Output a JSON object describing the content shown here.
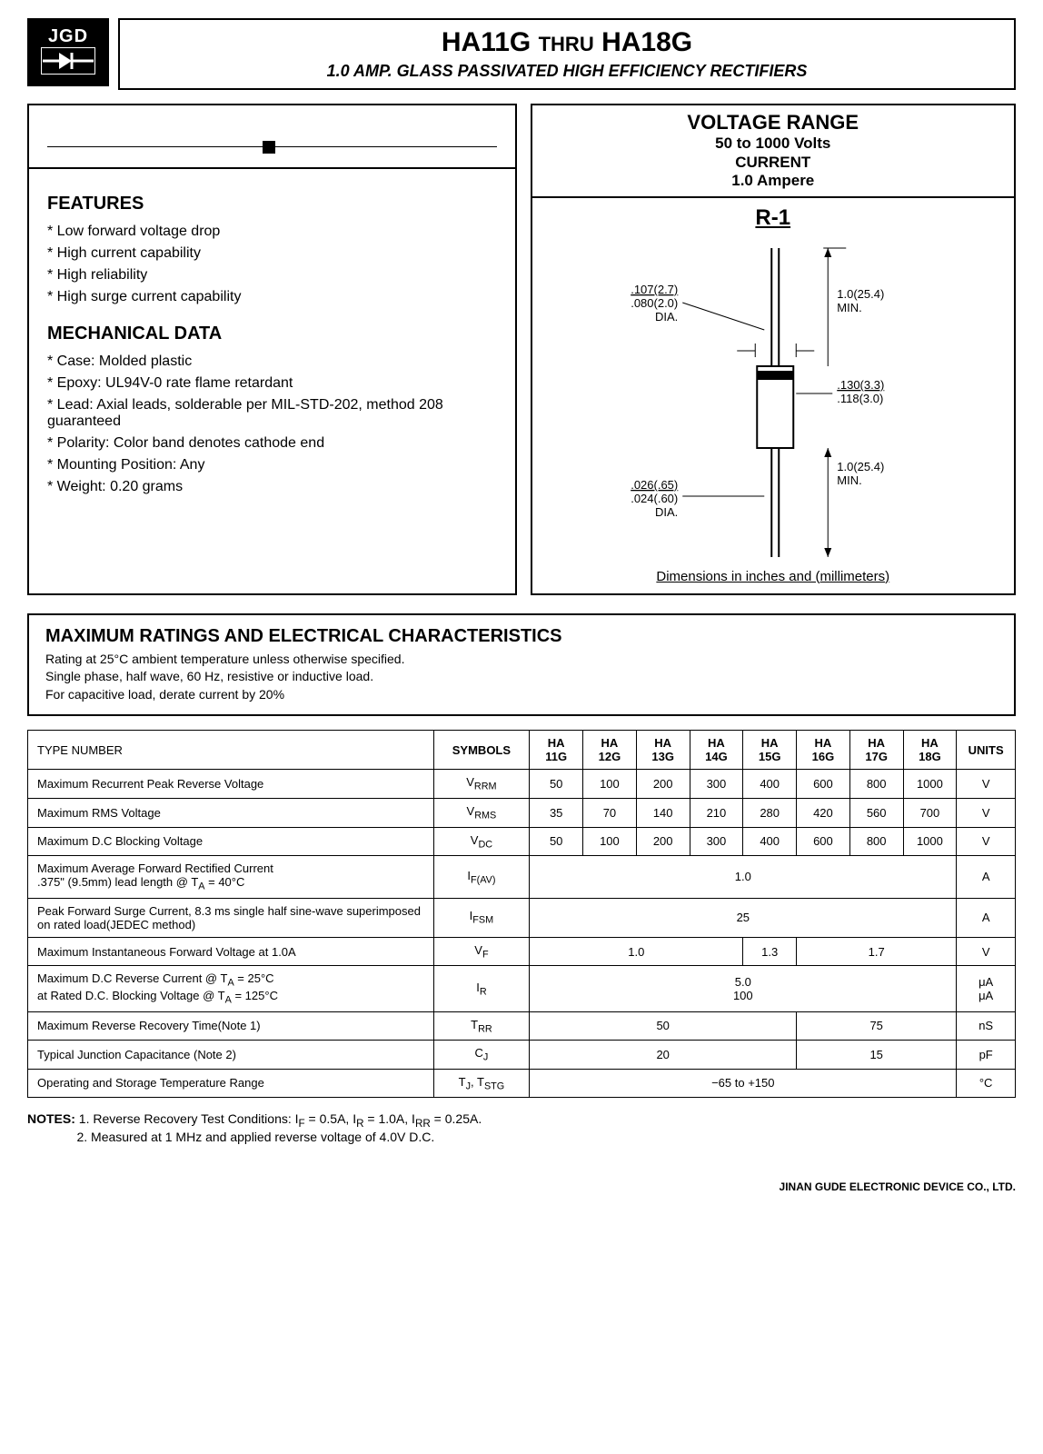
{
  "logo": {
    "text": "JGD"
  },
  "header": {
    "title_left": "HA11G",
    "title_mid": "THRU",
    "title_right": "HA18G",
    "subtitle": "1.0 AMP.  GLASS PASSIVATED HIGH EFFICIENCY RECTIFIERS"
  },
  "voltage_box": {
    "title": "VOLTAGE RANGE",
    "line1": "50 to 1000 Volts",
    "line2": "CURRENT",
    "line3": "1.0 Ampere"
  },
  "diagram": {
    "label": "R-1",
    "dim_lead_dia_top": ".107(2.7)",
    "dim_lead_dia_bot": ".080(2.0)",
    "dim_lead_dia_suffix": "DIA.",
    "dim_lead_len": "1.0(25.4)",
    "dim_lead_len_suffix": "MIN.",
    "dim_body_dia_top": ".130(3.3)",
    "dim_body_dia_bot": ".118(3.0)",
    "dim_lead2_dia_top": ".026(.65)",
    "dim_lead2_dia_bot": ".024(.60)",
    "dim_lead2_dia_suffix": "DIA.",
    "caption": "Dimensions in inches and (millimeters)"
  },
  "features": {
    "title": "FEATURES",
    "items": [
      "Low forward voltage drop",
      "High current capability",
      "High reliability",
      "High surge current capability"
    ]
  },
  "mechanical": {
    "title": "MECHANICAL DATA",
    "items": [
      "Case: Molded plastic",
      "Epoxy: UL94V-0 rate flame retardant",
      "Lead: Axial leads, solderable per MIL-STD-202, method 208 guaranteed",
      "Polarity: Color band denotes cathode end",
      "Mounting Position: Any",
      "Weight: 0.20 grams"
    ]
  },
  "ratings": {
    "title": "MAXIMUM RATINGS AND ELECTRICAL CHARACTERISTICS",
    "line1": "Rating at 25°C ambient temperature unless otherwise specified.",
    "line2": "Single phase, half wave, 60 Hz, resistive or inductive load.",
    "line3": "For capacitive load, derate current by 20%"
  },
  "table": {
    "headers": {
      "type": "TYPE NUMBER",
      "symbols": "SYMBOLS",
      "cols": [
        "HA 11G",
        "HA 12G",
        "HA 13G",
        "HA 14G",
        "HA 15G",
        "HA 16G",
        "HA 17G",
        "HA 18G"
      ],
      "units": "UNITS"
    },
    "rows": [
      {
        "label": "Maximum Recurrent Peak Reverse Voltage",
        "symbol": "V<sub>RRM</sub>",
        "vals": [
          "50",
          "100",
          "200",
          "300",
          "400",
          "600",
          "800",
          "1000"
        ],
        "units": "V"
      },
      {
        "label": "Maximum RMS Voltage",
        "symbol": "V<sub>RMS</sub>",
        "vals": [
          "35",
          "70",
          "140",
          "210",
          "280",
          "420",
          "560",
          "700"
        ],
        "units": "V"
      },
      {
        "label": "Maximum D.C Blocking Voltage",
        "symbol": "V<sub>DC</sub>",
        "vals": [
          "50",
          "100",
          "200",
          "300",
          "400",
          "600",
          "800",
          "1000"
        ],
        "units": "V"
      },
      {
        "label": "Maximum Average Forward Rectified Current<br>.375\" (9.5mm) lead length @ T<sub>A</sub> = 40°C",
        "symbol": "I<sub>F(AV)</sub>",
        "span": {
          "text": "1.0",
          "cols": 8
        },
        "units": "A"
      },
      {
        "label": "Peak Forward Surge Current, 8.3 ms single half sine-wave superimposed on rated load(JEDEC method)",
        "symbol": "I<sub>FSM</sub>",
        "span": {
          "text": "25",
          "cols": 8
        },
        "units": "A"
      },
      {
        "label": "Maximum Instantaneous Forward Voltage at 1.0A",
        "symbol": "V<sub>F</sub>",
        "spans": [
          {
            "text": "1.0",
            "cols": 4
          },
          {
            "text": "1.3",
            "cols": 1
          },
          {
            "text": "1.7",
            "cols": 3
          }
        ],
        "units": "V"
      },
      {
        "label": "Maximum D.C Reverse Current @ T<sub>A</sub> = 25°C<br>at Rated D.C. Blocking Voltage @ T<sub>A</sub> = 125°C",
        "symbol": "I<sub>R</sub>",
        "span": {
          "text": "5.0<br>100",
          "cols": 8
        },
        "units": "μA<br>μA"
      },
      {
        "label": "Maximum Reverse Recovery Time(Note 1)",
        "symbol": "T<sub>RR</sub>",
        "spans": [
          {
            "text": "50",
            "cols": 5
          },
          {
            "text": "75",
            "cols": 3
          }
        ],
        "units": "nS"
      },
      {
        "label": "Typical Junction Capacitance (Note 2)",
        "symbol": "C<sub>J</sub>",
        "spans": [
          {
            "text": "20",
            "cols": 5
          },
          {
            "text": "15",
            "cols": 3
          }
        ],
        "units": "pF"
      },
      {
        "label": "Operating and Storage Temperature Range",
        "symbol": "T<sub>J</sub>, T<sub>STG</sub>",
        "span": {
          "text": "−65 to +150",
          "cols": 8
        },
        "units": "°C"
      }
    ]
  },
  "notes": {
    "label": "NOTES:",
    "n1": "1. Reverse Recovery Test Conditions: I<sub>F</sub> = 0.5A, I<sub>R</sub> = 1.0A, I<sub>RR</sub> = 0.25A.",
    "n2": "2. Measured at 1 MHz and applied reverse voltage of 4.0V D.C."
  },
  "footer": "JINAN GUDE ELECTRONIC DEVICE CO., LTD."
}
